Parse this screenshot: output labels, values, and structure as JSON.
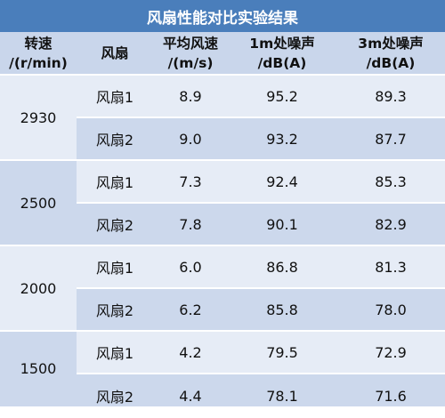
{
  "title": "风扇性能对比实验结果",
  "headers": {
    "speed": [
      "转速",
      "/(r/min)"
    ],
    "fan": [
      "风扇"
    ],
    "avg_speed": [
      "平均风速",
      "/(m/s)"
    ],
    "noise_1m": [
      "1m处噪声",
      "/dB(A)"
    ],
    "noise_3m": [
      "3m处噪声",
      "/dB(A)"
    ]
  },
  "groups": [
    {
      "speed": "2930",
      "rows": [
        {
          "fan": "风扇1",
          "avg": "8.9",
          "n1": "95.2",
          "n3": "89.3"
        },
        {
          "fan": "风扇2",
          "avg": "9.0",
          "n1": "93.2",
          "n3": "87.7"
        }
      ]
    },
    {
      "speed": "2500",
      "rows": [
        {
          "fan": "风扇1",
          "avg": "7.3",
          "n1": "92.4",
          "n3": "85.3"
        },
        {
          "fan": "风扇2",
          "avg": "7.8",
          "n1": "90.1",
          "n3": "82.9"
        }
      ]
    },
    {
      "speed": "2000",
      "rows": [
        {
          "fan": "风扇1",
          "avg": "6.0",
          "n1": "86.8",
          "n3": "81.3"
        },
        {
          "fan": "风扇2",
          "avg": "6.2",
          "n1": "85.8",
          "n3": "78.0"
        }
      ]
    },
    {
      "speed": "1500",
      "rows": [
        {
          "fan": "风扇1",
          "avg": "4.2",
          "n1": "79.5",
          "n3": "72.9"
        },
        {
          "fan": "风扇2",
          "avg": "4.4",
          "n1": "78.1",
          "n3": "71.6"
        }
      ]
    }
  ],
  "colors": {
    "title_bg": "#4a7ebb",
    "header_bg": "#c9d6eb",
    "row_light": "#e6ecf6",
    "row_dark": "#ccd8ec"
  }
}
